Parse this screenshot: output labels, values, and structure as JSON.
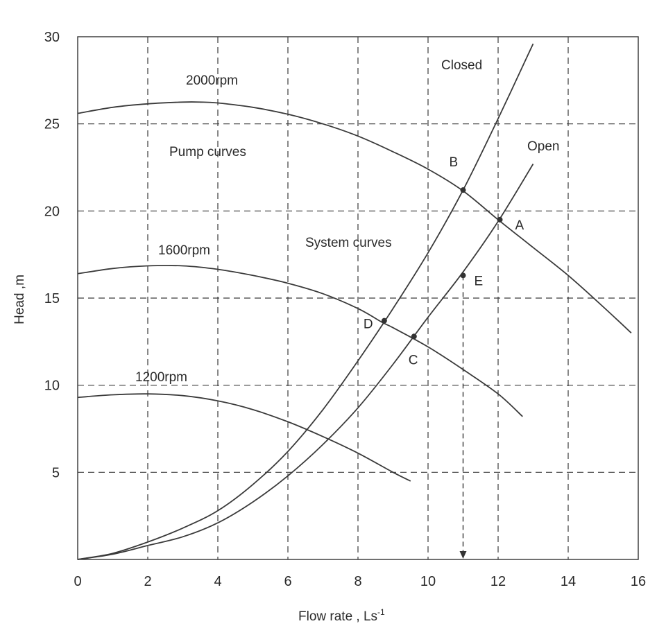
{
  "chart_data": {
    "type": "line",
    "title": "",
    "xlabel": "Flow rate , Ls",
    "xlabel_exp": "-1",
    "ylabel": "Head ,m",
    "xlim": [
      0,
      16
    ],
    "ylim": [
      0,
      30
    ],
    "x_ticks": [
      0,
      2,
      4,
      6,
      8,
      10,
      12,
      14,
      16
    ],
    "x_tick_labels": [
      "0",
      "2",
      "4",
      "6",
      "8",
      "10",
      "12",
      "14",
      "16"
    ],
    "y_ticks": [
      5,
      10,
      15,
      20,
      25,
      30
    ],
    "y_tick_labels": [
      "5",
      "10",
      "15",
      "20",
      "25",
      "30"
    ],
    "grid": true,
    "series": [
      {
        "name": "2000rpm",
        "group": "pump",
        "x": [
          0,
          1,
          2,
          3,
          3.5,
          4,
          5,
          6,
          7,
          8,
          9,
          10,
          11,
          12,
          13,
          14,
          15,
          15.8
        ],
        "y": [
          25.6,
          25.95,
          26.15,
          26.25,
          26.25,
          26.2,
          25.95,
          25.55,
          25.0,
          24.3,
          23.4,
          22.4,
          21.15,
          19.5,
          17.9,
          16.3,
          14.5,
          13.0
        ]
      },
      {
        "name": "1600rpm",
        "group": "pump",
        "x": [
          0,
          1,
          2,
          3,
          4,
          5,
          6,
          7,
          8,
          8.7,
          9,
          10,
          11,
          12,
          12.7
        ],
        "y": [
          16.4,
          16.7,
          16.85,
          16.85,
          16.65,
          16.3,
          15.85,
          15.25,
          14.4,
          13.6,
          13.3,
          12.2,
          10.9,
          9.5,
          8.2
        ]
      },
      {
        "name": "1200rpm",
        "group": "pump",
        "x": [
          0,
          1,
          2,
          3,
          4,
          5,
          6,
          7,
          8,
          9,
          9.5
        ],
        "y": [
          9.3,
          9.45,
          9.5,
          9.4,
          9.1,
          8.6,
          7.9,
          7.05,
          6.1,
          5.0,
          4.5
        ]
      },
      {
        "name": "Closed",
        "group": "system",
        "x": [
          0,
          1,
          2,
          3,
          4,
          5,
          6,
          7,
          8,
          9,
          10,
          11,
          12,
          13
        ],
        "y": [
          0,
          0.35,
          1.0,
          1.8,
          2.8,
          4.3,
          6.2,
          8.6,
          11.4,
          14.4,
          17.6,
          21.2,
          25.3,
          29.6
        ]
      },
      {
        "name": "Open",
        "group": "system",
        "x": [
          0,
          1,
          2,
          3,
          4,
          5,
          6,
          7,
          8,
          9,
          10,
          11,
          12,
          13
        ],
        "y": [
          0,
          0.3,
          0.8,
          1.3,
          2.1,
          3.3,
          4.8,
          6.6,
          8.7,
          11.2,
          13.9,
          16.5,
          19.4,
          22.7
        ]
      }
    ],
    "points": [
      {
        "label": "A",
        "x": 12.05,
        "y": 19.5
      },
      {
        "label": "B",
        "x": 11.0,
        "y": 21.2
      },
      {
        "label": "C",
        "x": 9.6,
        "y": 12.8
      },
      {
        "label": "D",
        "x": 8.75,
        "y": 13.7
      },
      {
        "label": "E",
        "x": 11.0,
        "y": 16.3
      }
    ],
    "annotations": {
      "rpm_2000": "2000rpm",
      "rpm_1600": "1600rpm",
      "rpm_1200": "1200rpm",
      "pump_curves": "Pump curves",
      "system_curves": "System curves",
      "closed": "Closed",
      "open": "Open"
    },
    "arrow": {
      "x": 11.0,
      "from_y": 16.3,
      "to_y": 0
    }
  }
}
